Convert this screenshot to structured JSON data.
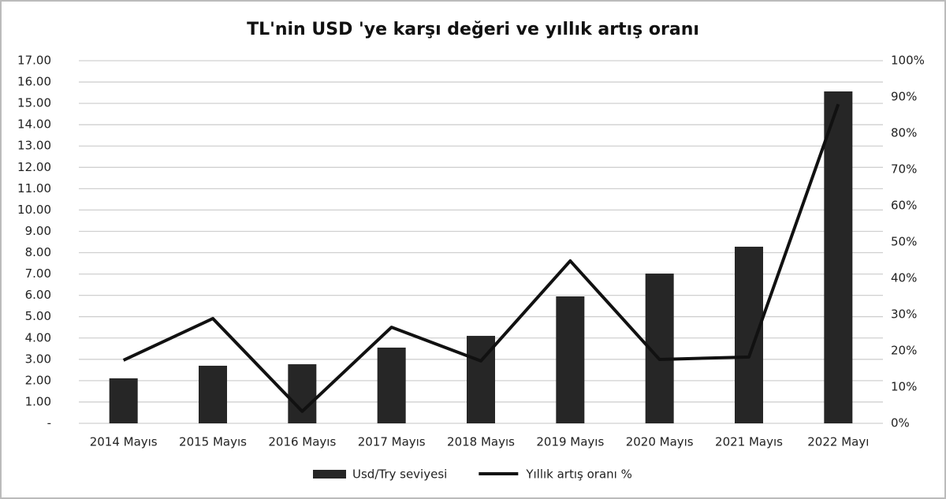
{
  "chart_data": {
    "type": "bar-line",
    "title": "TL'nin USD 'ye karşı değeri ve yıllık artış oranı",
    "categories": [
      "2014 Mayıs",
      "2015 Mayıs",
      "2016 Mayıs",
      "2017 Mayıs",
      "2018 Mayıs",
      "2019 Mayıs",
      "2020 Mayıs",
      "2021 Mayıs",
      "2022 Mayı"
    ],
    "series": [
      {
        "name": "Usd/Try seviyesi",
        "type": "bar",
        "color": "#262626",
        "values": [
          2.11,
          2.7,
          2.77,
          3.55,
          4.1,
          5.95,
          7.02,
          8.28,
          15.56
        ]
      },
      {
        "name": "Yıllık artış oranı %",
        "type": "line",
        "axis": "y2",
        "color": "#111111",
        "values": [
          17.4,
          28.9,
          3.3,
          26.5,
          17.2,
          44.8,
          17.6,
          18.3,
          88.0
        ]
      }
    ],
    "ylim": [
      0,
      17
    ],
    "yticks": [
      {
        "value": 0,
        "label": "-"
      },
      {
        "value": 1,
        "label": "1.00"
      },
      {
        "value": 2,
        "label": "2.00"
      },
      {
        "value": 3,
        "label": "3.00"
      },
      {
        "value": 4,
        "label": "4.00"
      },
      {
        "value": 5,
        "label": "5.00"
      },
      {
        "value": 6,
        "label": "6.00"
      },
      {
        "value": 7,
        "label": "7.00"
      },
      {
        "value": 8,
        "label": "8.00"
      },
      {
        "value": 9,
        "label": "9.00"
      },
      {
        "value": 10,
        "label": "10.00"
      },
      {
        "value": 11,
        "label": "11.00"
      },
      {
        "value": 12,
        "label": "12.00"
      },
      {
        "value": 13,
        "label": "13.00"
      },
      {
        "value": 14,
        "label": "14.00"
      },
      {
        "value": 15,
        "label": "15.00"
      },
      {
        "value": 16,
        "label": "16.00"
      },
      {
        "value": 17,
        "label": "17.00"
      }
    ],
    "y2lim": [
      0,
      100
    ],
    "y2ticks": [
      {
        "value": 0,
        "label": "0%"
      },
      {
        "value": 10,
        "label": "10%"
      },
      {
        "value": 20,
        "label": "20%"
      },
      {
        "value": 30,
        "label": "30%"
      },
      {
        "value": 40,
        "label": "40%"
      },
      {
        "value": 50,
        "label": "50%"
      },
      {
        "value": 60,
        "label": "60%"
      },
      {
        "value": 70,
        "label": "70%"
      },
      {
        "value": 80,
        "label": "80%"
      },
      {
        "value": 90,
        "label": "90%"
      },
      {
        "value": 100,
        "label": "100%"
      }
    ],
    "grid": true,
    "legend": "bottom"
  }
}
